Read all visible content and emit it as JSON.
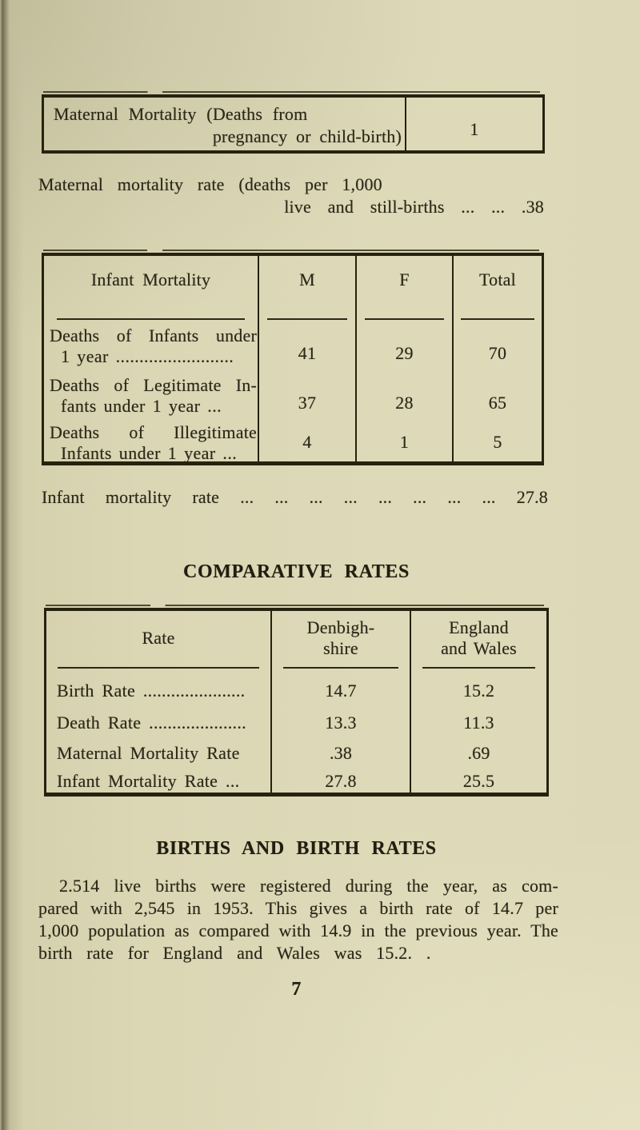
{
  "page": {
    "number": "7",
    "paper_color": "#dad5b2",
    "ink_color": "#2b2719"
  },
  "maternal_mortality_table": {
    "label_line1": "Maternal Mortality (Deaths from",
    "label_line2": "pregnancy or child-birth)",
    "value": "1"
  },
  "maternal_mortality_rate": {
    "line1": "Maternal mortality rate (deaths per 1,000",
    "line2": "live and still-births ... ... .38"
  },
  "infant_mortality_table": {
    "headers": [
      "Infant Mortality",
      "M",
      "F",
      "Total"
    ],
    "rows": [
      {
        "label_line1": "Deaths of Infants under",
        "label_line2": "1 year .........................",
        "m": "41",
        "f": "29",
        "total": "70"
      },
      {
        "label_line1": "Deaths of Legitimate In-",
        "label_line2": "fants under 1 year ...",
        "m": "37",
        "f": "28",
        "total": "65"
      },
      {
        "label_line1": "Deaths of Illegitimate",
        "label_line2": "Infants under 1 year ...",
        "m": "4",
        "f": "1",
        "total": "5"
      }
    ]
  },
  "infant_mortality_rate_line": "Infant mortality rate ... ... ... ... ... ... ... ... 27.8",
  "comparative_rates": {
    "title": "COMPARATIVE RATES",
    "headers": {
      "rate": "Rate",
      "col1_line1": "Denbigh-",
      "col1_line2": "shire",
      "col2_line1": "England",
      "col2_line2": "and Wales"
    },
    "rows": [
      {
        "label": "Birth Rate ......................",
        "denbighshire": "14.7",
        "england_and_wales": "15.2"
      },
      {
        "label": "Death Rate .....................",
        "denbighshire": "13.3",
        "england_and_wales": "11.3"
      },
      {
        "label": "Maternal Mortality Rate",
        "denbighshire": ".38",
        "england_and_wales": ".69"
      },
      {
        "label": "Infant Mortality Rate ...",
        "denbighshire": "27.8",
        "england_and_wales": "25.5"
      }
    ]
  },
  "births_section": {
    "title": "BIRTHS AND BIRTH RATES",
    "lines": [
      "2.514 live births were registered during the year, as com-",
      "pared with 2,545 in 1953. This gives a birth rate of 14.7 per",
      "1,000 population as compared with 14.9 in the previous year. The",
      "birth rate for England and Wales was 15.2. ."
    ]
  }
}
